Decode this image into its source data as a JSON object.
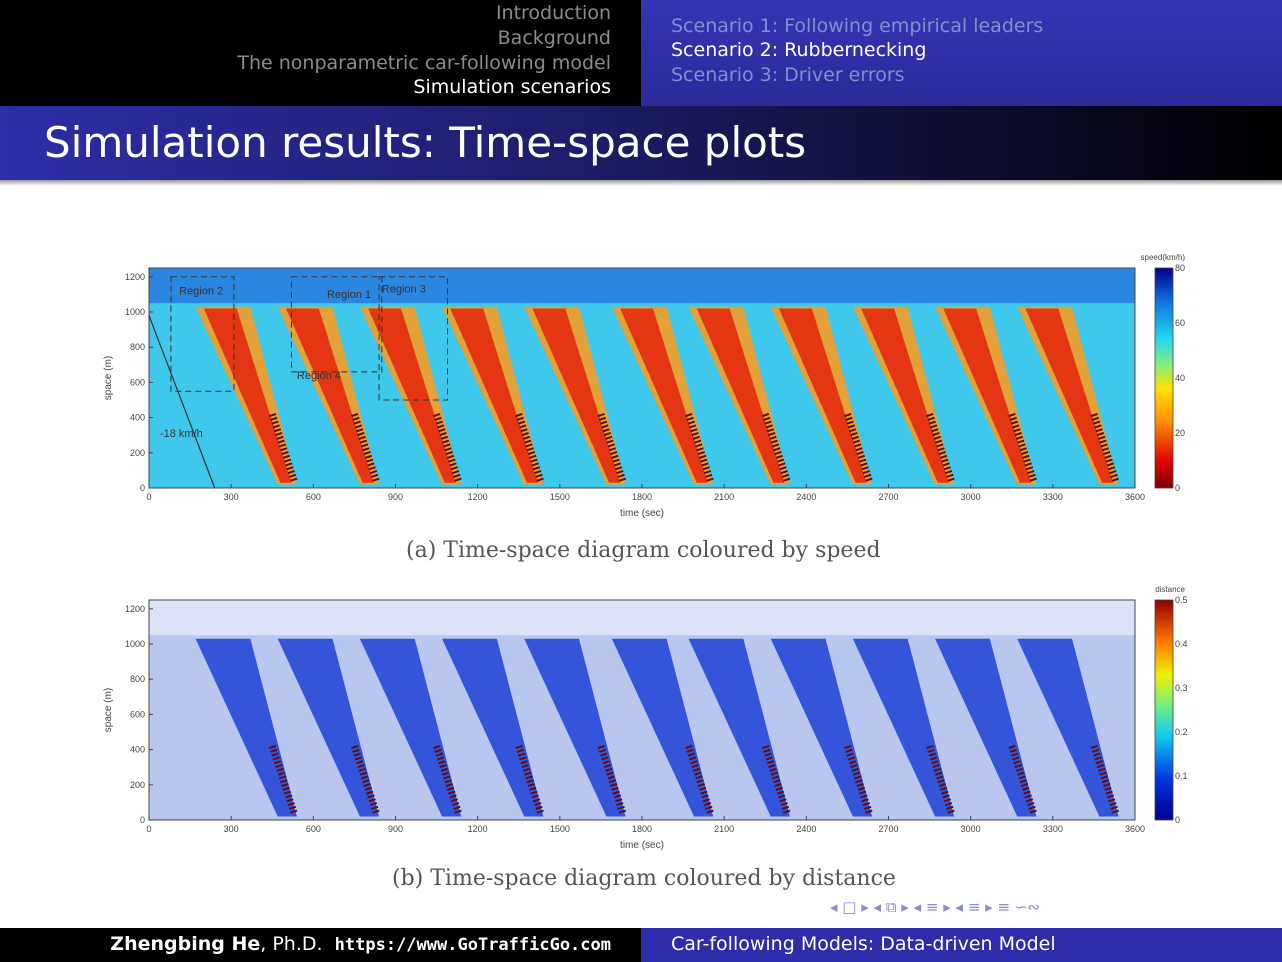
{
  "header": {
    "sections": [
      "Introduction",
      "Background",
      "The nonparametric car-following model",
      "Simulation scenarios"
    ],
    "active_section": 3,
    "subsections": [
      "Scenario 1: Following empirical leaders",
      "Scenario 2: Rubbernecking",
      "Scenario 3: Driver errors"
    ],
    "active_subsection": 1
  },
  "slide_title": "Simulation results: Time-space plots",
  "footer": {
    "author": "Zhengbing He",
    "degree": ", Ph.D.",
    "url": "https://www.GoTrafficGo.com",
    "talk_title": "Car-following Models: Data-driven Model"
  },
  "chart_data": [
    {
      "type": "heatmap",
      "caption": "(a) Time-space diagram coloured by speed",
      "xlabel": "time (sec)",
      "ylabel": "space (m)",
      "xlim": [
        0,
        3600
      ],
      "ylim": [
        0,
        1250
      ],
      "xticks": [
        0,
        300,
        600,
        900,
        1200,
        1500,
        1800,
        2100,
        2400,
        2700,
        3000,
        3300,
        3600
      ],
      "yticks": [
        0,
        200,
        400,
        600,
        800,
        1000,
        1200
      ],
      "colorbar": {
        "label": "speed(km/h)",
        "ticks": [
          0,
          20,
          40,
          60,
          80
        ],
        "range": [
          0,
          80
        ],
        "scheme": "jet-reversed"
      },
      "jam_waves_start_time": [
        300,
        600,
        900,
        1200,
        1500,
        1820,
        2100,
        2400,
        2700,
        3000,
        3300
      ],
      "annotations": [
        "Region 2",
        "Region 1",
        "Region 3",
        "Region 4",
        "-18 km/h"
      ]
    },
    {
      "type": "heatmap",
      "caption": "(b) Time-space diagram coloured by distance",
      "xlabel": "time (sec)",
      "ylabel": "space (m)",
      "xlim": [
        0,
        3600
      ],
      "ylim": [
        0,
        1250
      ],
      "xticks": [
        0,
        300,
        600,
        900,
        1200,
        1500,
        1800,
        2100,
        2400,
        2700,
        3000,
        3300,
        3600
      ],
      "yticks": [
        0,
        200,
        400,
        600,
        800,
        1000,
        1200
      ],
      "colorbar": {
        "label": "distance",
        "ticks": [
          0,
          0.1,
          0.2,
          0.3,
          0.4,
          0.5
        ],
        "range": [
          0,
          0.5
        ],
        "scheme": "jet"
      },
      "jam_waves_start_time": [
        300,
        600,
        900,
        1200,
        1500,
        1820,
        2100,
        2400,
        2700,
        3000,
        3300
      ]
    }
  ],
  "nav_symbols": "◂ □ ▸ ◂ ⧉ ▸ ◂ ≡ ▸ ◂ ≡ ▸ ≡ ∽∾"
}
